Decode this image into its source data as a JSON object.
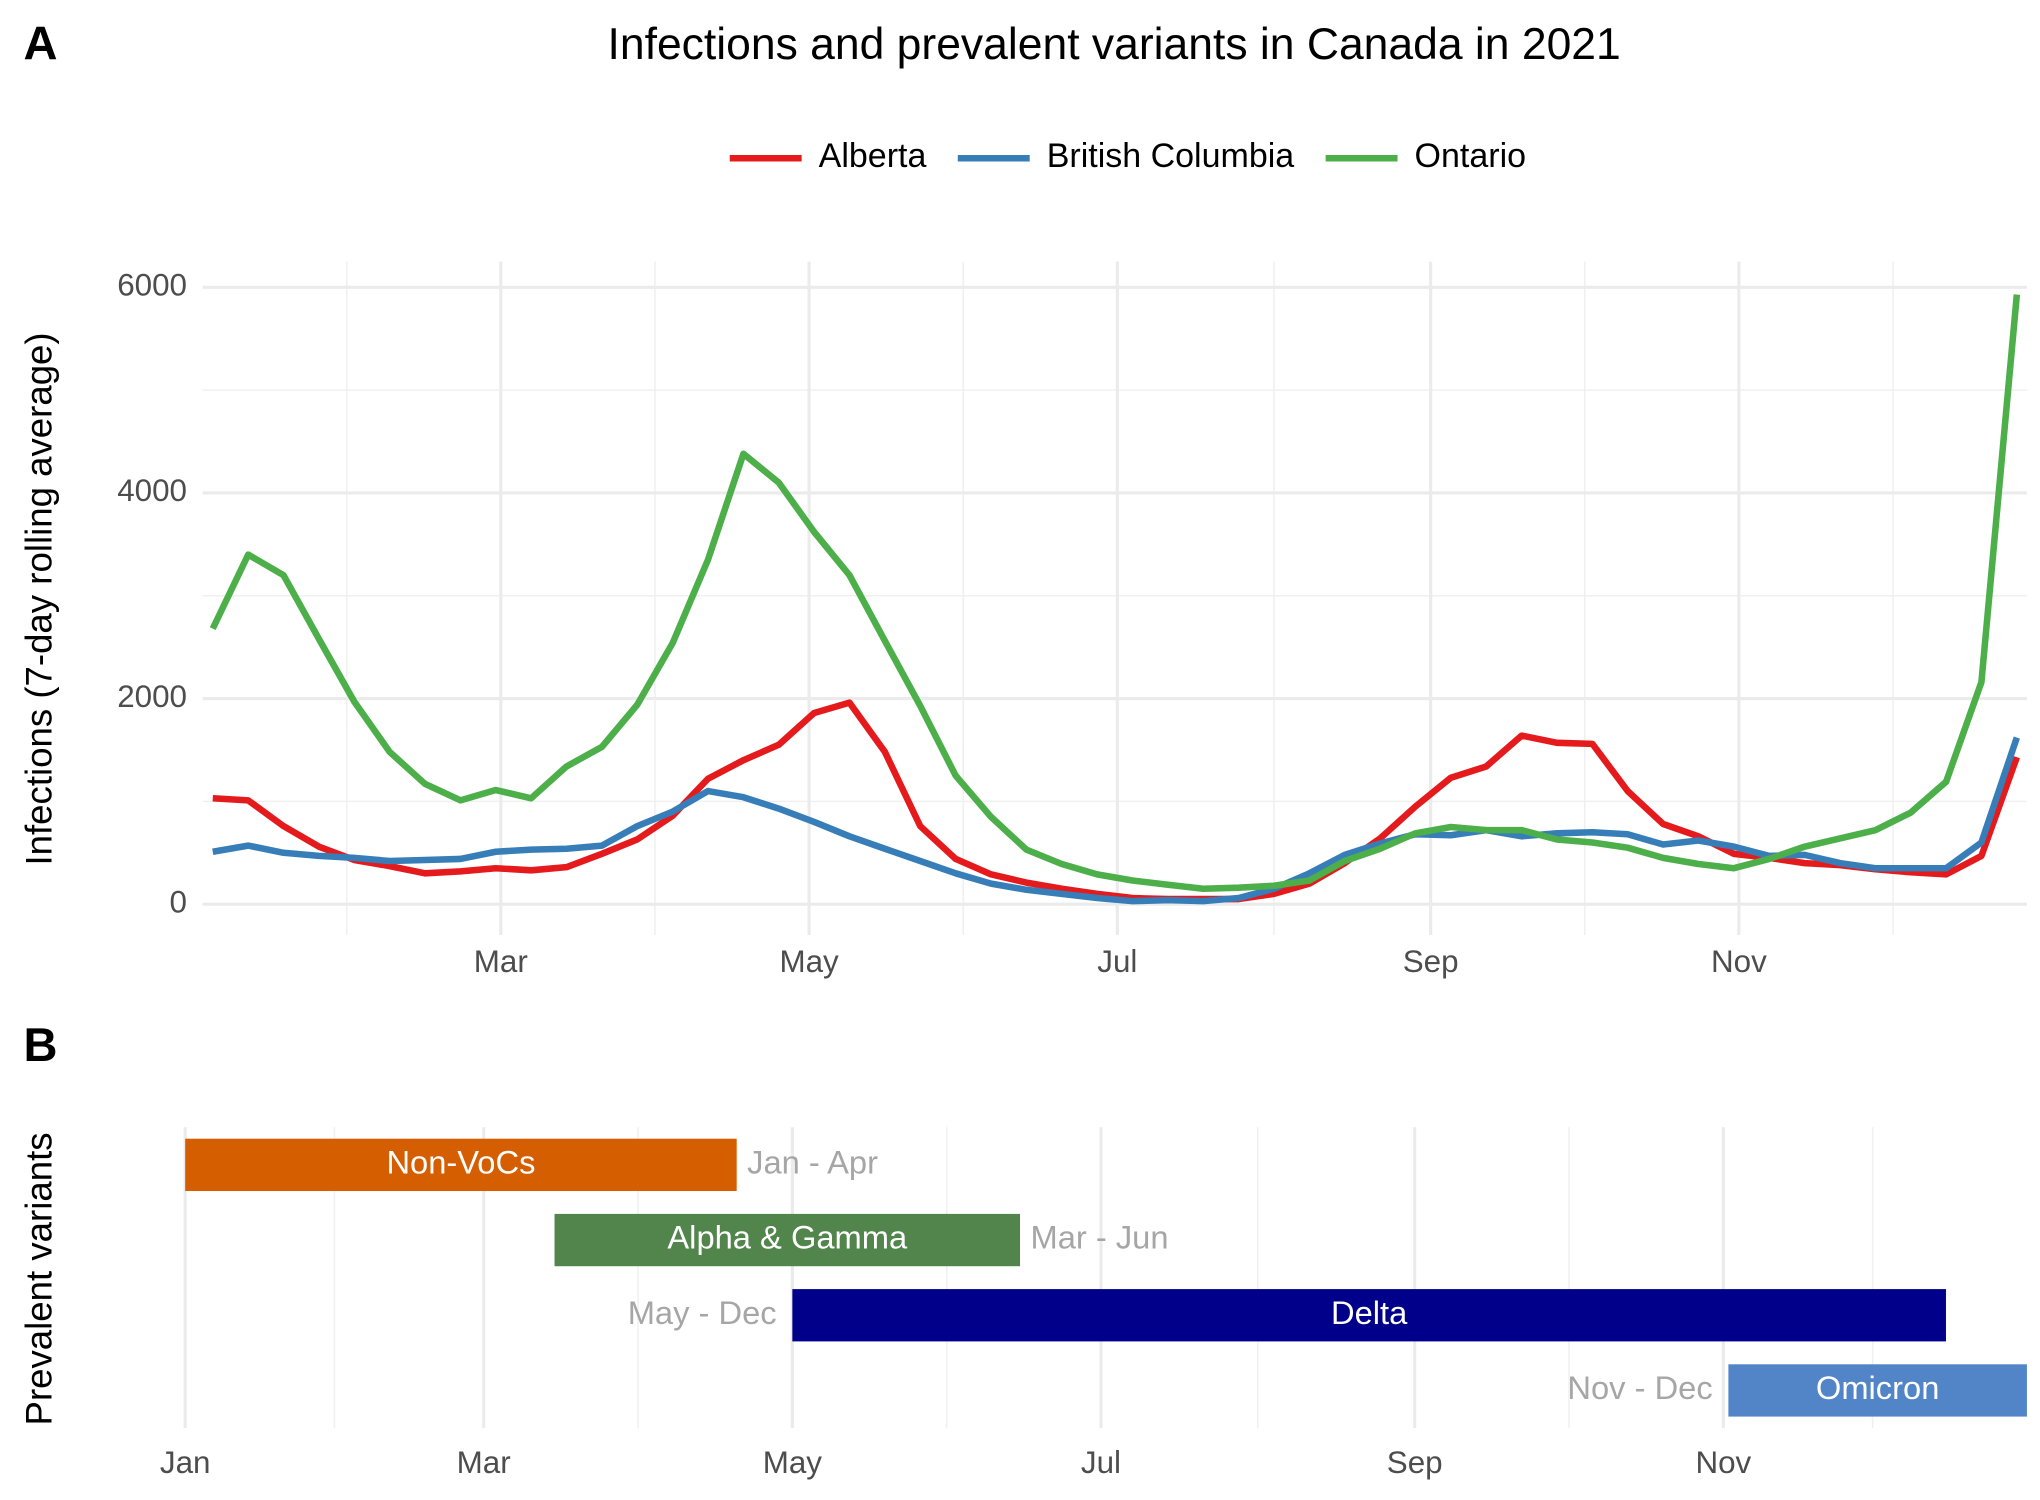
{
  "chart_data": [
    {
      "type": "line",
      "tag": "A",
      "title": "Infections and prevalent variants in Canada in 2021",
      "ylabel": "Infections (7-day rolling average)",
      "x": [
        2,
        9,
        16,
        23,
        30,
        37,
        44,
        51,
        58,
        65,
        72,
        79,
        86,
        93,
        100,
        107,
        114,
        121,
        128,
        135,
        142,
        149,
        156,
        163,
        170,
        177,
        184,
        191,
        198,
        205,
        212,
        219,
        226,
        233,
        240,
        247,
        254,
        261,
        268,
        275,
        282,
        289,
        296,
        303,
        310,
        317,
        324,
        331,
        338,
        345,
        352,
        359
      ],
      "xlim": [
        0,
        361
      ],
      "xticks": [
        {
          "value": 59,
          "label": "Mar"
        },
        {
          "value": 120,
          "label": "May"
        },
        {
          "value": 181,
          "label": "Jul"
        },
        {
          "value": 243,
          "label": "Sep"
        },
        {
          "value": 304,
          "label": "Nov"
        }
      ],
      "ylim": [
        -300,
        6250
      ],
      "yticks": [
        0,
        2000,
        4000,
        6000
      ],
      "grid": true,
      "legend": "top",
      "series": [
        {
          "name": "Alberta",
          "color": "#e41a1c",
          "values": [
            1030,
            1010,
            760,
            560,
            430,
            370,
            300,
            320,
            350,
            330,
            360,
            490,
            630,
            860,
            1220,
            1400,
            1550,
            1860,
            1960,
            1480,
            760,
            440,
            290,
            210,
            150,
            100,
            60,
            50,
            50,
            50,
            100,
            200,
            400,
            640,
            950,
            1230,
            1340,
            1640,
            1570,
            1560,
            1100,
            780,
            660,
            490,
            450,
            400,
            380,
            340,
            310,
            290,
            470,
            1430
          ]
        },
        {
          "name": "British Columbia",
          "color": "#377eb8",
          "values": [
            510,
            570,
            500,
            470,
            450,
            420,
            430,
            440,
            510,
            530,
            540,
            570,
            760,
            900,
            1100,
            1040,
            930,
            800,
            660,
            540,
            420,
            300,
            200,
            140,
            100,
            60,
            30,
            40,
            30,
            60,
            150,
            300,
            480,
            590,
            680,
            670,
            720,
            660,
            690,
            700,
            680,
            580,
            620,
            560,
            470,
            480,
            400,
            350,
            350,
            350,
            600,
            1620
          ]
        },
        {
          "name": "Ontario",
          "color": "#4daf4a",
          "values": [
            2680,
            3400,
            3200,
            2580,
            1970,
            1480,
            1170,
            1010,
            1110,
            1030,
            1340,
            1530,
            1940,
            2540,
            3350,
            4380,
            4100,
            3620,
            3200,
            2560,
            1930,
            1250,
            850,
            530,
            390,
            290,
            230,
            190,
            150,
            160,
            180,
            230,
            420,
            540,
            690,
            750,
            720,
            720,
            630,
            600,
            550,
            450,
            390,
            350,
            440,
            560,
            640,
            720,
            890,
            1190,
            2160,
            5930
          ]
        }
      ]
    },
    {
      "type": "range_bar",
      "tag": "B",
      "ylabel": "Prevalent variants",
      "xlim": [
        -3,
        364
      ],
      "xticks": [
        {
          "value": 0,
          "label": "Jan"
        },
        {
          "value": 59,
          "label": "Mar"
        },
        {
          "value": 120,
          "label": "May"
        },
        {
          "value": 181,
          "label": "Jul"
        },
        {
          "value": 243,
          "label": "Sep"
        },
        {
          "value": 304,
          "label": "Nov"
        }
      ],
      "grid": true,
      "bars": [
        {
          "name": "Non-VoCs",
          "color": "#d55e00",
          "start": 0,
          "end": 109,
          "range_label": "Jan - Apr"
        },
        {
          "name": "Alpha & Gamma",
          "color": "#52854c",
          "start": 73,
          "end": 165,
          "range_label": "Mar - Jun"
        },
        {
          "name": "Delta",
          "color": "#00008b",
          "start": 120,
          "end": 348,
          "range_label": "May - Dec"
        },
        {
          "name": "Omicron",
          "color": "#5284c8",
          "start": 305,
          "end": 364,
          "range_label": "Nov - Dec"
        }
      ]
    }
  ]
}
